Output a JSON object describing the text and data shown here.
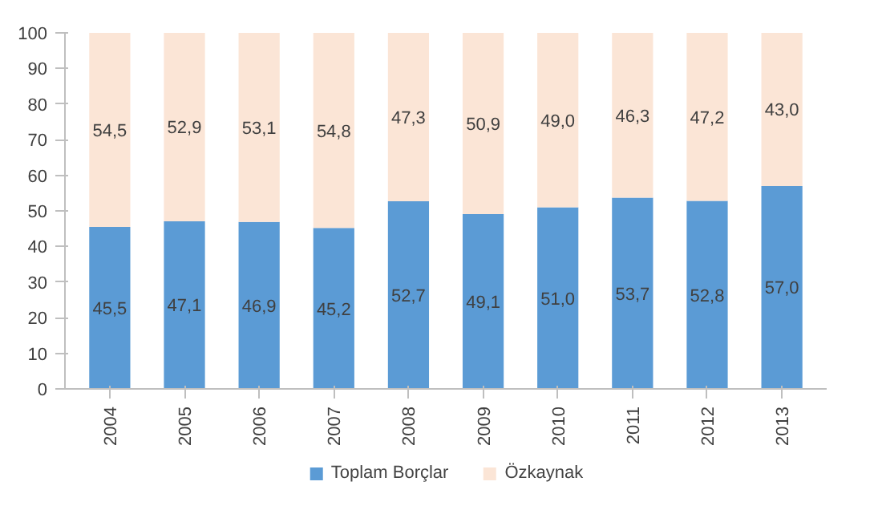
{
  "chart_data": {
    "type": "bar",
    "stacked": true,
    "categories": [
      "2004",
      "2005",
      "2006",
      "2007",
      "2008",
      "2009",
      "2010",
      "2011",
      "2012",
      "2013"
    ],
    "series": [
      {
        "name": "Toplam Borçlar",
        "color": "#5b9bd5",
        "values": [
          45.5,
          47.1,
          46.9,
          45.2,
          52.7,
          49.1,
          51.0,
          53.7,
          52.8,
          57.0
        ],
        "value_labels": [
          "45,5",
          "47,1",
          "46,9",
          "45,2",
          "52,7",
          "49,1",
          "51,0",
          "53,7",
          "52,8",
          "57,0"
        ]
      },
      {
        "name": "Özkaynak",
        "color": "#fbe5d6",
        "values": [
          54.5,
          52.9,
          53.1,
          54.8,
          47.3,
          50.9,
          49.0,
          46.3,
          47.2,
          43.0
        ],
        "value_labels": [
          "54,5",
          "52,9",
          "53,1",
          "54,8",
          "47,3",
          "50,9",
          "49,0",
          "46,3",
          "47,2",
          "43,0"
        ]
      }
    ],
    "ylim": [
      0,
      100
    ],
    "yticks": [
      0,
      10,
      20,
      30,
      40,
      50,
      60,
      70,
      80,
      90,
      100
    ],
    "grid": false,
    "legend": "bottom"
  }
}
